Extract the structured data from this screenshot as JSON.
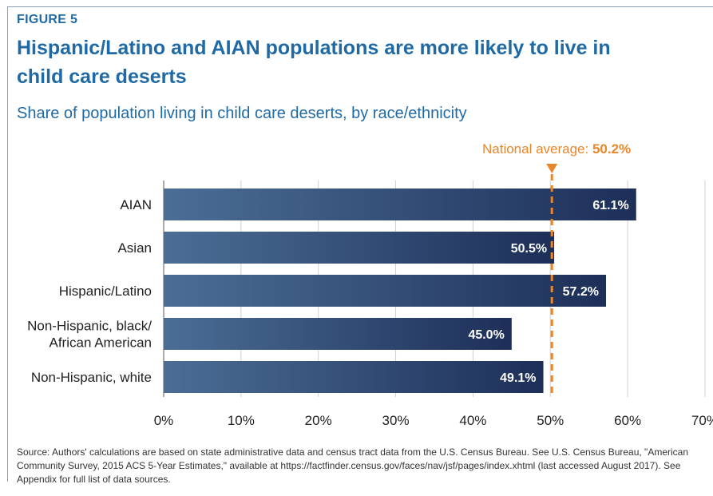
{
  "figure_label": "FIGURE 5",
  "title": "Hispanic/Latino and AIAN populations are more likely to live in child care deserts",
  "subtitle": "Share of population living in child care deserts, by race/ethnicity",
  "source": "Source: Authors' calculations are based on state administrative data and census tract data from the U.S. Census Bureau. See U.S. Census Bureau, \"American Community Survey, 2015 ACS 5-Year Estimates,\" available at https://factfinder.census.gov/faces/nav/jsf/pages/index.xhtml (last accessed August 2017). See Appendix for full list of data sources.",
  "colors": {
    "title": "#1f6aa5",
    "bar_start": "#4b6e96",
    "bar_end": "#1d2f58",
    "average": "#e8862a",
    "grid": "#d0d0d0"
  },
  "chart_data": {
    "type": "bar",
    "orientation": "horizontal",
    "categories": [
      "AIAN",
      "Asian",
      "Hispanic/Latino",
      "Non-Hispanic, black/ African American",
      "Non-Hispanic, white"
    ],
    "category_lines": [
      [
        "AIAN"
      ],
      [
        "Asian"
      ],
      [
        "Hispanic/Latino"
      ],
      [
        "Non-Hispanic, black/",
        "African American"
      ],
      [
        "Non-Hispanic, white"
      ]
    ],
    "values": [
      61.1,
      50.5,
      57.2,
      45.0,
      49.1
    ],
    "value_labels": [
      "61.1%",
      "50.5%",
      "57.2%",
      "45.0%",
      "49.1%"
    ],
    "xlim": [
      0,
      70
    ],
    "xticks": [
      0,
      10,
      20,
      30,
      40,
      50,
      60,
      70
    ],
    "xtick_labels": [
      "0%",
      "10%",
      "20%",
      "30%",
      "40%",
      "50%",
      "60%",
      "70%"
    ],
    "grid": true,
    "reference_line": {
      "value": 50.2,
      "label_prefix": "National average: ",
      "label_value": "50.2%"
    }
  }
}
